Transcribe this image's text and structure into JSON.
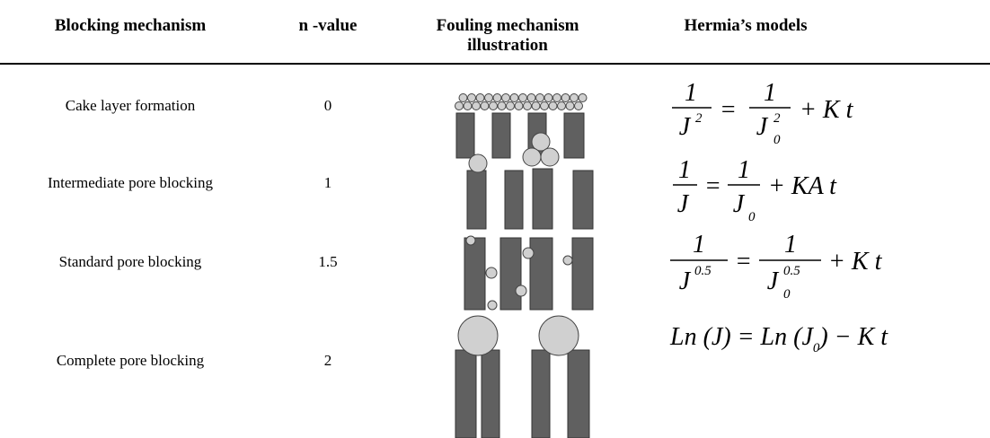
{
  "table": {
    "header": [
      "Blocking mechanism",
      "n -value",
      "Fouling mechanism illustration",
      "Hermia’s models"
    ],
    "rows": [
      {
        "mechanism": "Cake layer formation",
        "n": 0,
        "model": {
          "lhs": {
            "num": "1",
            "den": "J",
            "sup": "2"
          },
          "op": "=",
          "rhs": {
            "num": "1",
            "den": "J",
            "sub": "0",
            "sup": "2"
          },
          "tail": "+ K t"
        }
      },
      {
        "mechanism": "Intermediate pore blocking",
        "n": 1,
        "model": {
          "lhs": {
            "num": "1",
            "den": "J"
          },
          "op": "=",
          "rhs": {
            "num": "1",
            "den": "J",
            "sub": "0"
          },
          "tail": "+ KA t"
        }
      },
      {
        "mechanism": "Standard pore blocking",
        "n": 1.5,
        "model": {
          "lhs": {
            "num": "1",
            "den": "J",
            "sup": "0.5"
          },
          "op": "=",
          "rhs": {
            "num": "1",
            "den": "J",
            "sub": "0",
            "sup": "0.5"
          },
          "tail": "+ K t"
        }
      },
      {
        "mechanism": "Complete pore blocking",
        "n": 2,
        "model": {
          "pre": "Ln (J) = Ln (J",
          "sub": "0",
          "post": ") − K t"
        }
      }
    ]
  }
}
